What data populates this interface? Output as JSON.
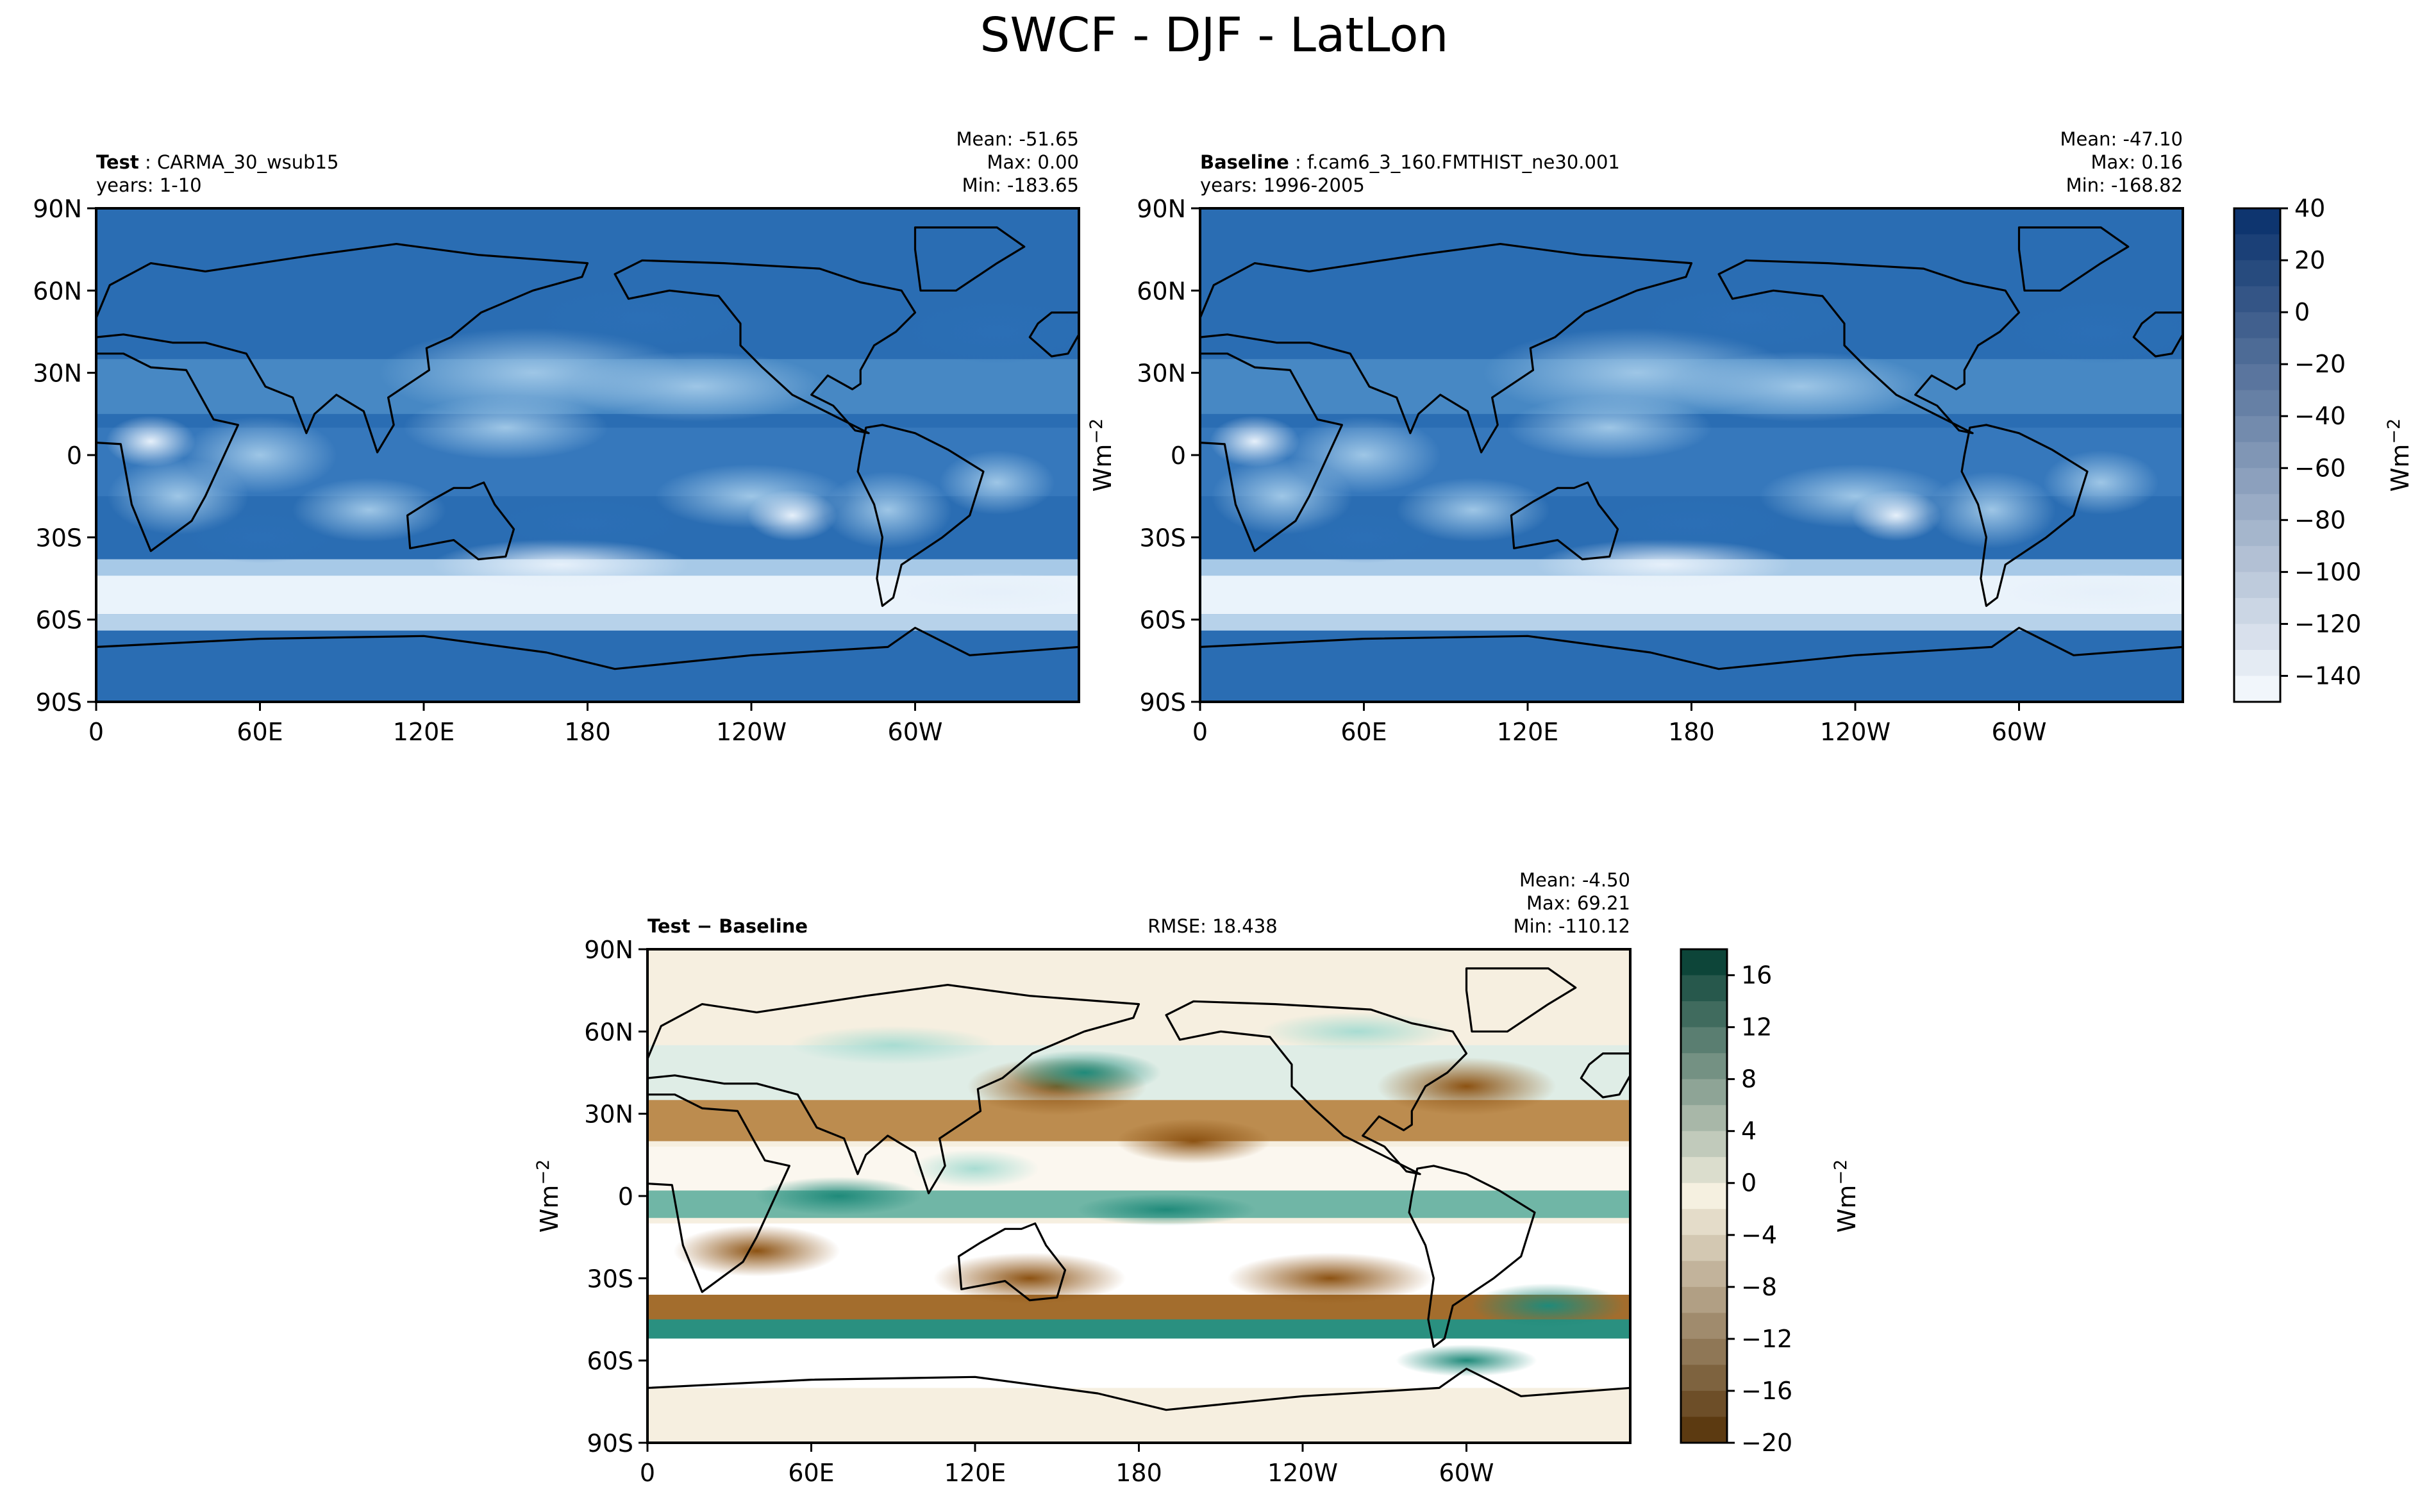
{
  "figure": {
    "title": "SWCF - DJF - LatLon"
  },
  "icons": {
    "coastline": "coastline-outline-icon"
  },
  "chart_data": [
    {
      "type": "heatmap",
      "panel": "test",
      "label_bold": "Test",
      "label_sep": ":",
      "label_text": "CARMA_30_wsub15",
      "subline": "years: 1-10",
      "stats": [
        "Mean: -51.65",
        "Max:  0.00",
        "Min: -183.65"
      ],
      "rmse": "",
      "xticks": [
        "0",
        "60E",
        "120E",
        "180",
        "120W",
        "60W"
      ],
      "yticks": [
        "90N",
        "60N",
        "30N",
        "0",
        "30S",
        "60S",
        "90S"
      ],
      "ylabel": "Wm",
      "ylabel_sup": "−2",
      "colormap": "Blues",
      "colors": [
        "#f7fbff",
        "#08306b"
      ]
    },
    {
      "type": "heatmap",
      "panel": "baseline",
      "label_bold": "Baseline",
      "label_sep": ":",
      "label_text": "f.cam6_3_160.FMTHIST_ne30.001",
      "subline": "years: 1996-2005",
      "stats": [
        "Mean: -47.10",
        "Max:  0.16",
        "Min: -168.82"
      ],
      "rmse": "",
      "xticks": [
        "0",
        "60E",
        "120E",
        "180",
        "120W",
        "60W"
      ],
      "yticks": [
        "90N",
        "60N",
        "30N",
        "0",
        "30S",
        "60S",
        "90S"
      ],
      "colorbar": {
        "ticks": [
          "40",
          "20",
          "0",
          "−20",
          "−40",
          "−60",
          "−80",
          "−100",
          "−120",
          "−140"
        ],
        "label": "Wm",
        "label_sup": "−2",
        "range": [
          -150,
          40
        ]
      }
    },
    {
      "type": "heatmap",
      "panel": "difference",
      "label_bold": "Test − Baseline",
      "subline": "",
      "stats": [
        "Mean: -4.50",
        "Max: 69.21",
        "Min: -110.12"
      ],
      "rmse": "RMSE: 18.438",
      "xticks": [
        "0",
        "60E",
        "120E",
        "180",
        "120W",
        "60W"
      ],
      "yticks": [
        "90N",
        "60N",
        "30N",
        "0",
        "30S",
        "60S",
        "90S"
      ],
      "ylabel": "Wm",
      "ylabel_sup": "−2",
      "colormap": "BrBG",
      "colors": [
        "#543005",
        "#f5f0e0",
        "#003c30"
      ],
      "colorbar": {
        "ticks": [
          "16",
          "12",
          "8",
          "4",
          "0",
          "−4",
          "−8",
          "−12",
          "−16",
          "−20"
        ],
        "label": "Wm",
        "label_sup": "−2",
        "range": [
          -20,
          18
        ]
      }
    }
  ]
}
